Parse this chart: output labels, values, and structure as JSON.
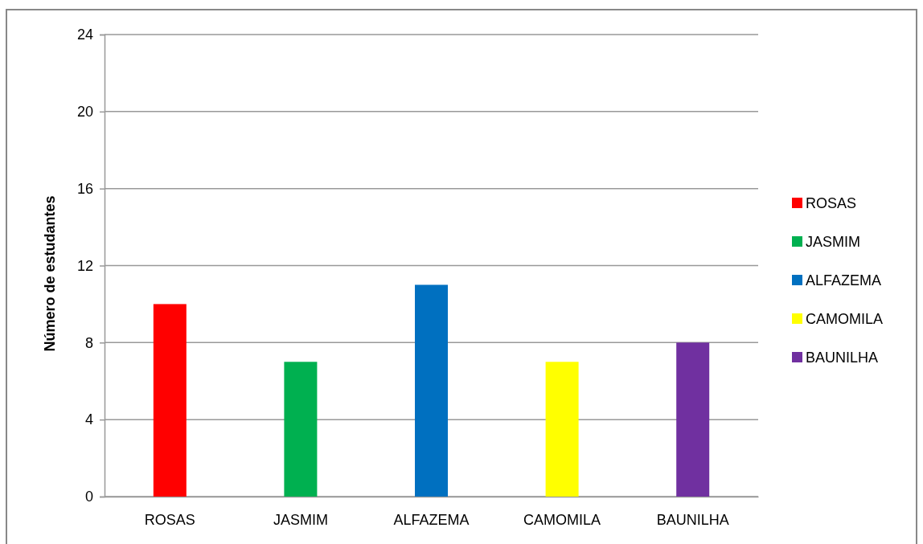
{
  "chart_data": {
    "type": "bar",
    "ylabel": "Número de estudantes",
    "categories": [
      "ROSAS",
      "JASMIM",
      "ALFAZEMA",
      "CAMOMILA",
      "BAUNILHA"
    ],
    "stacked": true,
    "series": [
      {
        "name": "ROSAS",
        "color": "#ff0000",
        "values": [
          10,
          null,
          null,
          null,
          null
        ]
      },
      {
        "name": "JASMIM",
        "color": "#00b050",
        "values": [
          null,
          7,
          null,
          null,
          null
        ]
      },
      {
        "name": "ALFAZEMA",
        "color": "#0070c0",
        "values": [
          null,
          null,
          11,
          null,
          null
        ]
      },
      {
        "name": "CAMOMILA",
        "color": "#ffff00",
        "values": [
          null,
          null,
          null,
          7,
          null
        ]
      },
      {
        "name": "BAUNILHA",
        "color": "#7030a0",
        "values": [
          null,
          null,
          null,
          null,
          8
        ]
      }
    ],
    "ylim": [
      0,
      24
    ],
    "yticks": [
      0,
      4,
      8,
      12,
      16,
      20,
      24
    ],
    "grid": "y",
    "legend": "right"
  }
}
